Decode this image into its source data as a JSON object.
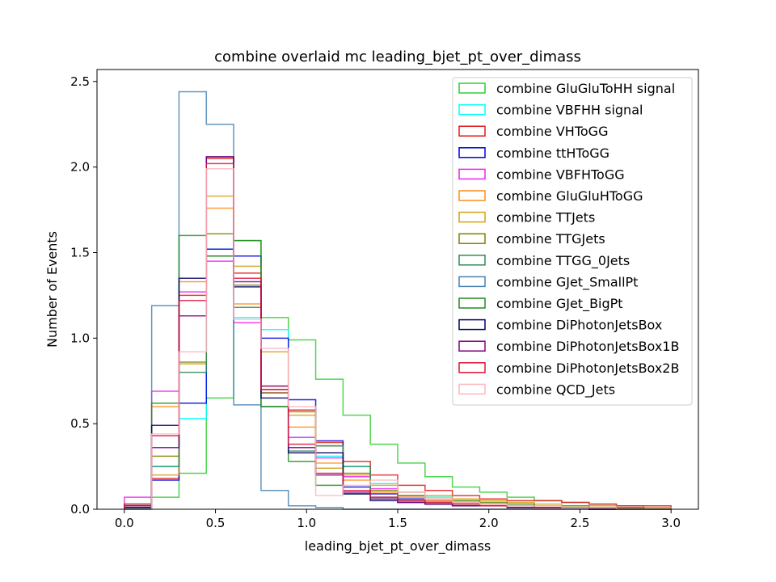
{
  "chart_data": {
    "type": "histogram",
    "title": "combine overlaid mc leading_bjet_pt_over_dimass",
    "xlabel": "leading_bjet_pt_over_dimass",
    "ylabel": "Number of Events",
    "xlim": [
      -0.15,
      3.15
    ],
    "ylim": [
      0,
      2.57
    ],
    "xticks": [
      0.0,
      0.5,
      1.0,
      1.5,
      2.0,
      2.5,
      3.0
    ],
    "xtick_labels": [
      "0.0",
      "0.5",
      "1.0",
      "1.5",
      "2.0",
      "2.5",
      "3.0"
    ],
    "yticks": [
      0.0,
      0.5,
      1.0,
      1.5,
      2.0,
      2.5
    ],
    "ytick_labels": [
      "0.0",
      "0.5",
      "1.0",
      "1.5",
      "2.0",
      "2.5"
    ],
    "grid": false,
    "legend_position": "upper right",
    "bin_edges": [
      0.0,
      0.15,
      0.3,
      0.45,
      0.6,
      0.75,
      0.9,
      1.05,
      1.2,
      1.35,
      1.5,
      1.65,
      1.8,
      1.95,
      2.1,
      2.25,
      2.4,
      2.55,
      2.7,
      2.85,
      3.0
    ],
    "series": [
      {
        "name": "combine GluGluToHH signal",
        "color": "#33cc33",
        "values": [
          0.0,
          0.07,
          0.21,
          0.65,
          1.57,
          1.12,
          0.99,
          0.76,
          0.55,
          0.38,
          0.27,
          0.19,
          0.13,
          0.1,
          0.07,
          0.05,
          0.04,
          0.03,
          0.02,
          0.01
        ]
      },
      {
        "name": "combine VBFHH signal",
        "color": "#00ffff",
        "values": [
          0.0,
          0.25,
          0.53,
          1.52,
          1.12,
          1.05,
          0.42,
          0.31,
          0.25,
          0.15,
          0.1,
          0.07,
          0.05,
          0.04,
          0.03,
          0.02,
          0.01,
          0.01,
          0.01,
          0.0
        ]
      },
      {
        "name": "combine VHToGG",
        "color": "#e31a1c",
        "values": [
          0.02,
          0.18,
          1.25,
          2.05,
          1.38,
          0.7,
          0.58,
          0.39,
          0.28,
          0.2,
          0.14,
          0.11,
          0.08,
          0.06,
          0.05,
          0.05,
          0.04,
          0.03,
          0.02,
          0.02
        ]
      },
      {
        "name": "combine ttHToGG",
        "color": "#0000dd",
        "values": [
          0.01,
          0.17,
          0.62,
          1.52,
          1.48,
          1.0,
          0.64,
          0.4,
          0.13,
          0.09,
          0.06,
          0.05,
          0.04,
          0.03,
          0.02,
          0.02,
          0.01,
          0.01,
          0.01,
          0.0
        ]
      },
      {
        "name": "combine VBFHToGG",
        "color": "#ee22ee",
        "values": [
          0.07,
          0.69,
          1.27,
          1.45,
          1.09,
          0.68,
          0.42,
          0.3,
          0.19,
          0.12,
          0.08,
          0.05,
          0.04,
          0.03,
          0.02,
          0.02,
          0.01,
          0.01,
          0.01,
          0.0
        ]
      },
      {
        "name": "combine GluGluHToGG",
        "color": "#ff8c1a",
        "values": [
          0.02,
          0.6,
          1.33,
          1.76,
          1.2,
          0.72,
          0.48,
          0.27,
          0.17,
          0.1,
          0.07,
          0.05,
          0.04,
          0.03,
          0.02,
          0.02,
          0.01,
          0.01,
          0.0,
          0.0
        ]
      },
      {
        "name": "combine TTJets",
        "color": "#d4a017",
        "values": [
          0.01,
          0.2,
          0.85,
          1.83,
          1.42,
          0.92,
          0.55,
          0.24,
          0.2,
          0.14,
          0.1,
          0.08,
          0.06,
          0.05,
          0.04,
          0.03,
          0.02,
          0.02,
          0.01,
          0.01
        ]
      },
      {
        "name": "combine TTGJets",
        "color": "#808000",
        "values": [
          0.01,
          0.31,
          0.86,
          1.61,
          1.31,
          0.68,
          0.57,
          0.37,
          0.21,
          0.11,
          0.08,
          0.06,
          0.05,
          0.04,
          0.03,
          0.02,
          0.02,
          0.01,
          0.01,
          0.0
        ]
      },
      {
        "name": "combine TTGG_0Jets",
        "color": "#2e8b57",
        "values": [
          0.01,
          0.25,
          0.8,
          1.48,
          1.18,
          0.6,
          0.34,
          0.37,
          0.25,
          0.07,
          0.05,
          0.04,
          0.03,
          0.02,
          0.02,
          0.01,
          0.01,
          0.0,
          0.0,
          0.0
        ]
      },
      {
        "name": "combine GJet_SmallPt",
        "color": "#4682b4",
        "values": [
          0.0,
          1.19,
          2.44,
          2.25,
          0.61,
          0.11,
          0.02,
          0.01,
          0.0,
          0.0,
          0.0,
          0.0,
          0.0,
          0.0,
          0.0,
          0.0,
          0.0,
          0.0,
          0.0,
          0.0
        ]
      },
      {
        "name": "combine GJet_BigPt",
        "color": "#228b22",
        "values": [
          0.03,
          0.62,
          1.6,
          1.48,
          1.57,
          0.6,
          0.28,
          0.14,
          0.09,
          0.06,
          0.04,
          0.03,
          0.02,
          0.02,
          0.01,
          0.01,
          0.01,
          0.01,
          0.0,
          0.0
        ]
      },
      {
        "name": "combine DiPhotonJetsBox",
        "color": "#000066",
        "values": [
          0.01,
          0.49,
          1.35,
          2.06,
          1.3,
          0.65,
          0.33,
          0.33,
          0.09,
          0.05,
          0.04,
          0.03,
          0.02,
          0.02,
          0.01,
          0.01,
          0.01,
          0.0,
          0.0,
          0.0
        ]
      },
      {
        "name": "combine DiPhotonJetsBox1B",
        "color": "#800080",
        "values": [
          0.02,
          0.36,
          1.13,
          2.06,
          1.33,
          0.72,
          0.36,
          0.2,
          0.1,
          0.06,
          0.04,
          0.03,
          0.02,
          0.02,
          0.01,
          0.01,
          0.01,
          0.0,
          0.0,
          0.0
        ]
      },
      {
        "name": "combine DiPhotonJetsBox2B",
        "color": "#dc143c",
        "values": [
          0.03,
          0.43,
          1.22,
          2.02,
          1.35,
          0.7,
          0.38,
          0.21,
          0.11,
          0.07,
          0.05,
          0.04,
          0.03,
          0.02,
          0.02,
          0.01,
          0.01,
          0.01,
          0.0,
          0.0
        ]
      },
      {
        "name": "combine QCD_Jets",
        "color": "#ffb6c1",
        "values": [
          0.0,
          0.44,
          0.92,
          1.99,
          1.11,
          0.94,
          0.6,
          0.08,
          0.14,
          0.17,
          0.1,
          0.06,
          0.04,
          0.03,
          0.02,
          0.02,
          0.01,
          0.01,
          0.0,
          0.0
        ]
      }
    ]
  }
}
